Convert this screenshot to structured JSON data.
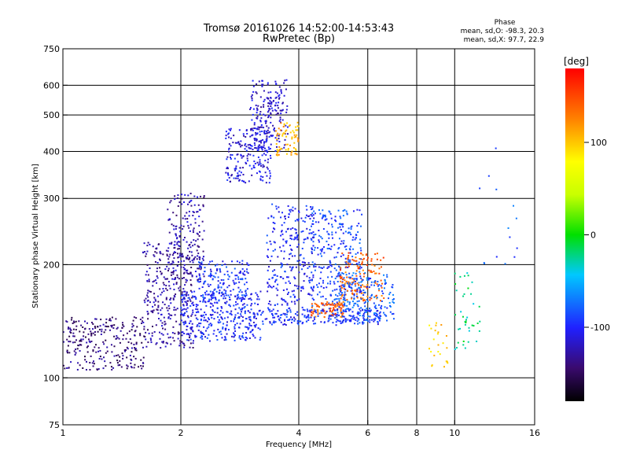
{
  "chart_data": {
    "type": "scatter",
    "title": "Tromsø 20161026 14:52:00-14:53:43",
    "subtitle": "RwPretec (Bp)",
    "xlabel": "Frequency [MHz]",
    "ylabel": "Stationary phase Virtual Height [km]",
    "x_scale": "log",
    "y_scale": "log",
    "xlim": [
      1,
      16
    ],
    "ylim": [
      75,
      750
    ],
    "x_ticks": [
      1,
      2,
      4,
      6,
      8,
      10,
      16
    ],
    "x_gridlines": [
      2,
      4,
      6,
      8,
      10
    ],
    "y_ticks": [
      75,
      100,
      200,
      300,
      400,
      500,
      600,
      750
    ],
    "y_gridlines": [
      100,
      200,
      300,
      400,
      500,
      600
    ],
    "grid": true,
    "phase_info": {
      "heading": "Phase",
      "line_o": "mean, sd,O: -98.3, 20.3",
      "line_x": "mean, sd,X:  97.7, 22.9"
    },
    "colorbar": {
      "label": "[deg]",
      "range": [
        -180,
        180
      ],
      "ticks": [
        100,
        0,
        -100
      ],
      "colormap": "rainbow"
    },
    "clusters": [
      {
        "x": [
          1.0,
          1.62
        ],
        "h": [
          105,
          145
        ],
        "phase": -140,
        "n": 260
      },
      {
        "x": [
          1.6,
          2.15
        ],
        "h": [
          120,
          230
        ],
        "phase": -130,
        "n": 320
      },
      {
        "x": [
          1.85,
          2.3
        ],
        "h": [
          180,
          310
        ],
        "phase": -125,
        "n": 180
      },
      {
        "x": [
          2.0,
          3.2
        ],
        "h": [
          125,
          170
        ],
        "phase": -100,
        "n": 360
      },
      {
        "x": [
          2.2,
          3.0
        ],
        "h": [
          160,
          205
        ],
        "phase": -95,
        "n": 160
      },
      {
        "x": [
          2.6,
          3.4
        ],
        "h": [
          330,
          460
        ],
        "phase": -110,
        "n": 200
      },
      {
        "x": [
          3.0,
          3.75
        ],
        "h": [
          400,
          620
        ],
        "phase": -115,
        "n": 200
      },
      {
        "x": [
          3.5,
          4.0
        ],
        "h": [
          390,
          480
        ],
        "phase": 110,
        "n": 70
      },
      {
        "x": [
          3.3,
          4.4
        ],
        "h": [
          140,
          290
        ],
        "phase": -100,
        "n": 300
      },
      {
        "x": [
          4.3,
          5.8
        ],
        "h": [
          145,
          280
        ],
        "phase": -90,
        "n": 320
      },
      {
        "x": [
          4.3,
          5.2
        ],
        "h": [
          145,
          160
        ],
        "phase": 140,
        "n": 90
      },
      {
        "x": [
          5.1,
          6.6
        ],
        "h": [
          160,
          215
        ],
        "phase": 140,
        "n": 150
      },
      {
        "x": [
          5.0,
          7.0
        ],
        "h": [
          140,
          190
        ],
        "phase": -80,
        "n": 200
      },
      {
        "x": [
          3.2,
          6.5
        ],
        "h": [
          138,
          152
        ],
        "phase": -95,
        "n": 150
      },
      {
        "x": [
          8.6,
          9.6
        ],
        "h": [
          105,
          140
        ],
        "phase": 100,
        "n": 25
      },
      {
        "x": [
          10.0,
          11.6
        ],
        "h": [
          115,
          190
        ],
        "phase": -20,
        "n": 40
      },
      {
        "x": [
          11.4,
          14.5
        ],
        "h": [
          200,
          460
        ],
        "phase": -80,
        "n": 14
      }
    ]
  }
}
